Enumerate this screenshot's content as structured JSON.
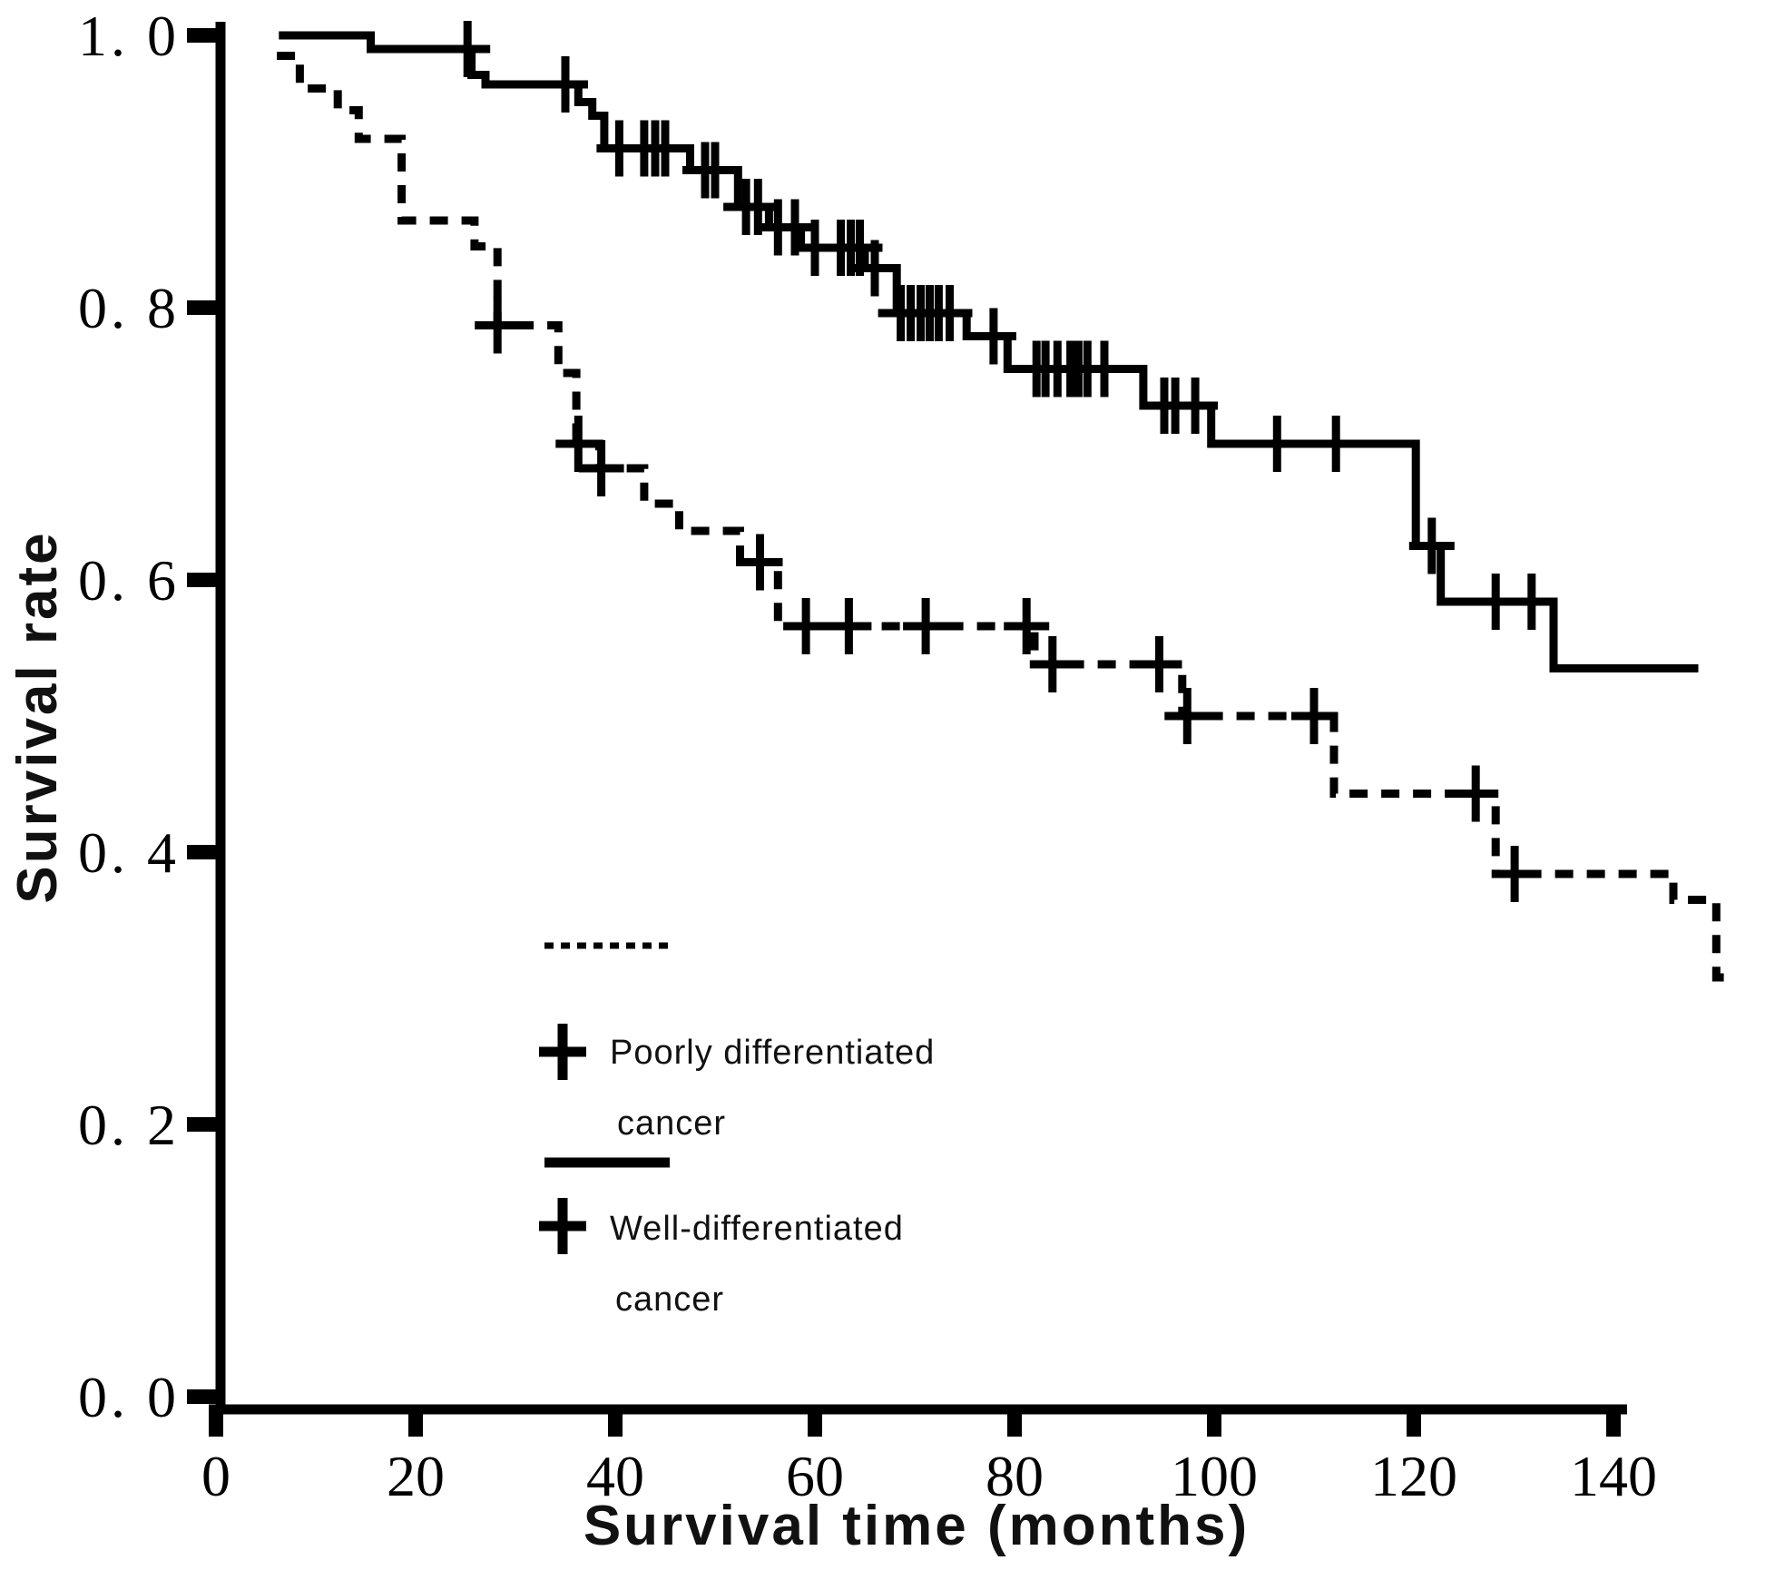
{
  "figure": {
    "background_color": "#ffffff",
    "line_color": "#000000",
    "ylabel": "Survival rate",
    "xlabel": "Survival  time (months)"
  },
  "legend": {
    "entries": [
      {
        "marker": "+",
        "line_style": "dashed",
        "label_line1": "Poorly differentiated",
        "label_line2": "cancer"
      },
      {
        "marker": "+",
        "line_style": "solid",
        "label_line1": "Well-differentiated",
        "label_line2": "cancer"
      }
    ]
  },
  "chart_data": {
    "type": "line",
    "subtype": "kaplan-meier-step-function",
    "title": "",
    "xlabel": "Survival  time (months)",
    "ylabel": "Survival rate",
    "xlim": [
      0,
      155
    ],
    "ylim": [
      0.0,
      1.0
    ],
    "grid": false,
    "legend_position": "inside-lower-left",
    "x_ticks": [
      {
        "value": 0,
        "label": "0"
      },
      {
        "value": 20,
        "label": "20"
      },
      {
        "value": 40,
        "label": "40"
      },
      {
        "value": 60,
        "label": "60"
      },
      {
        "value": 80,
        "label": "80"
      },
      {
        "value": 100,
        "label": "100"
      },
      {
        "value": 120,
        "label": "120"
      },
      {
        "value": 140,
        "label": "140"
      }
    ],
    "y_ticks": [
      {
        "value": 1.0,
        "label": "1. 0"
      },
      {
        "value": 0.8,
        "label": "0. 8"
      },
      {
        "value": 0.6,
        "label": "0. 6"
      },
      {
        "value": 0.4,
        "label": "0. 4"
      },
      {
        "value": 0.2,
        "label": "0. 2"
      },
      {
        "value": 0.0,
        "label": "0. 0"
      }
    ],
    "series": [
      {
        "name": "Well-differentiated cancer",
        "style": "solid",
        "start": [
          6.3,
          1.0
        ],
        "steps": [
          [
            15.5,
            0.99
          ],
          [
            25.6,
            0.971
          ],
          [
            27.0,
            0.964
          ],
          [
            36.3,
            0.951
          ],
          [
            37.7,
            0.941
          ],
          [
            38.9,
            0.917
          ],
          [
            47.5,
            0.901
          ],
          [
            52.3,
            0.874
          ],
          [
            55.4,
            0.859
          ],
          [
            58.6,
            0.844
          ],
          [
            65.0,
            0.829
          ],
          [
            68.2,
            0.796
          ],
          [
            75.2,
            0.779
          ],
          [
            79.3,
            0.755
          ],
          [
            92.9,
            0.728
          ],
          [
            99.7,
            0.7
          ],
          [
            120.2,
            0.625
          ],
          [
            122.7,
            0.584
          ],
          [
            134.0,
            0.535
          ]
        ],
        "end_x": 148.5,
        "censors": [
          [
            25.2,
            0.99
          ],
          [
            35.0,
            0.964
          ],
          [
            40.4,
            0.917
          ],
          [
            42.9,
            0.917
          ],
          [
            44.0,
            0.917
          ],
          [
            45.0,
            0.917
          ],
          [
            49.0,
            0.901
          ],
          [
            50.0,
            0.901
          ],
          [
            53.1,
            0.874
          ],
          [
            54.3,
            0.874
          ],
          [
            56.3,
            0.859
          ],
          [
            58.0,
            0.859
          ],
          [
            60.0,
            0.844
          ],
          [
            62.6,
            0.844
          ],
          [
            63.6,
            0.844
          ],
          [
            64.5,
            0.844
          ],
          [
            66.0,
            0.829
          ],
          [
            68.6,
            0.796
          ],
          [
            69.6,
            0.796
          ],
          [
            70.6,
            0.796
          ],
          [
            71.5,
            0.796
          ],
          [
            72.4,
            0.796
          ],
          [
            73.5,
            0.796
          ],
          [
            77.9,
            0.779
          ],
          [
            82.2,
            0.755
          ],
          [
            83.1,
            0.755
          ],
          [
            84.3,
            0.755
          ],
          [
            85.6,
            0.755
          ],
          [
            86.4,
            0.755
          ],
          [
            87.3,
            0.755
          ],
          [
            89.0,
            0.755
          ],
          [
            95.0,
            0.728
          ],
          [
            96.1,
            0.728
          ],
          [
            98.1,
            0.728
          ],
          [
            106.3,
            0.7
          ],
          [
            112.2,
            0.7
          ],
          [
            121.8,
            0.625
          ],
          [
            128.2,
            0.584
          ],
          [
            131.8,
            0.584
          ]
        ]
      },
      {
        "name": "Poorly differentiated cancer",
        "style": "dashed",
        "start": [
          6.1,
          0.985
        ],
        "steps": [
          [
            8.4,
            0.961
          ],
          [
            12.2,
            0.945
          ],
          [
            14.3,
            0.924
          ],
          [
            18.6,
            0.864
          ],
          [
            25.9,
            0.845
          ],
          [
            28.2,
            0.787
          ],
          [
            34.3,
            0.752
          ],
          [
            36.1,
            0.7
          ],
          [
            38.4,
            0.682
          ],
          [
            42.9,
            0.656
          ],
          [
            46.4,
            0.636
          ],
          [
            52.5,
            0.613
          ],
          [
            56.3,
            0.566
          ],
          [
            82.0,
            0.538
          ],
          [
            96.8,
            0.5
          ],
          [
            112.0,
            0.443
          ],
          [
            128.2,
            0.384
          ],
          [
            146.0,
            0.365
          ],
          [
            150.3,
            0.308
          ]
        ],
        "end_x": 151.3,
        "censors": [
          [
            28.2,
            0.787
          ],
          [
            36.3,
            0.7
          ],
          [
            38.6,
            0.682
          ],
          [
            54.5,
            0.613
          ],
          [
            59.1,
            0.566
          ],
          [
            63.4,
            0.566
          ],
          [
            71.1,
            0.566
          ],
          [
            81.2,
            0.566
          ],
          [
            83.8,
            0.538
          ],
          [
            94.5,
            0.538
          ],
          [
            97.3,
            0.5
          ],
          [
            110.0,
            0.5
          ],
          [
            126.2,
            0.443
          ],
          [
            130.1,
            0.384
          ]
        ]
      }
    ]
  }
}
